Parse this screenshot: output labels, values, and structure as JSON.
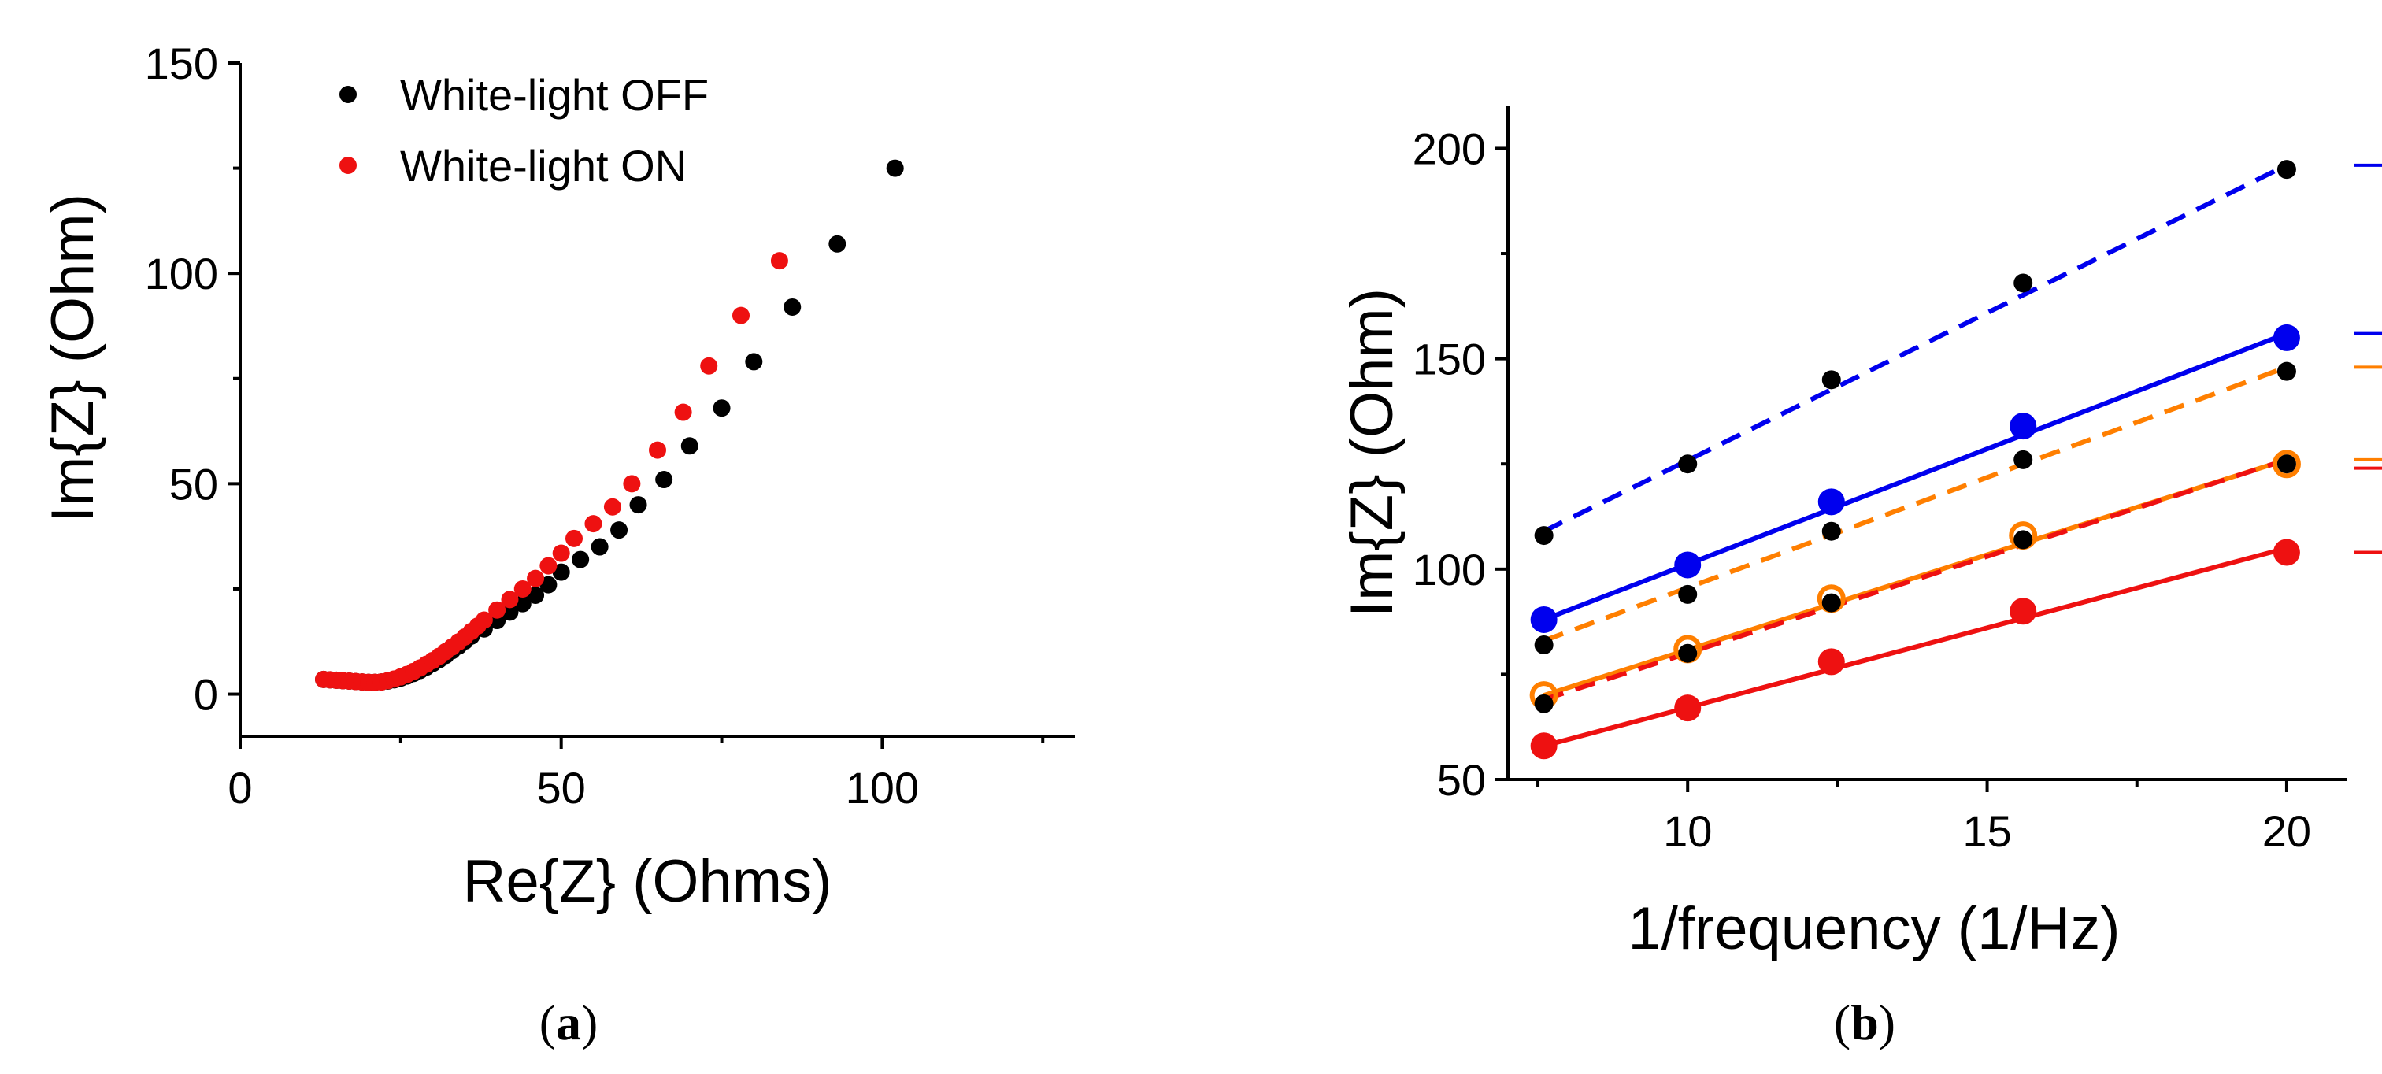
{
  "chart_data": [
    {
      "type": "scatter",
      "panel_label": {
        "open": "(",
        "letter": "a",
        "close": ")"
      },
      "xlabel": "Re{Z} (Ohms)",
      "ylabel": "Im{Z} (Ohm)",
      "xlim": [
        0,
        130
      ],
      "ylim": [
        -10,
        150
      ],
      "xticks": [
        0,
        50,
        100
      ],
      "yticks": [
        0,
        50,
        100,
        150
      ],
      "legend_position": "top-left",
      "series": [
        {
          "name": "White-light OFF",
          "color": "#000000",
          "points": [
            [
              13,
              3.5
            ],
            [
              14,
              3.4
            ],
            [
              15,
              3.3
            ],
            [
              16,
              3.2
            ],
            [
              17,
              3.1
            ],
            [
              18,
              3.0
            ],
            [
              19,
              2.9
            ],
            [
              20,
              2.8
            ],
            [
              21,
              2.8
            ],
            [
              22,
              2.9
            ],
            [
              23,
              3.1
            ],
            [
              24,
              3.4
            ],
            [
              25,
              3.8
            ],
            [
              26,
              4.3
            ],
            [
              27,
              4.9
            ],
            [
              28,
              5.6
            ],
            [
              29,
              6.4
            ],
            [
              30,
              7.3
            ],
            [
              31,
              8.2
            ],
            [
              32,
              9.2
            ],
            [
              33,
              10.3
            ],
            [
              34,
              11.4
            ],
            [
              35,
              12.6
            ],
            [
              36,
              13.8
            ],
            [
              38,
              15.5
            ],
            [
              40,
              17.5
            ],
            [
              42,
              19.5
            ],
            [
              44,
              21.5
            ],
            [
              46,
              23.5
            ],
            [
              48,
              26
            ],
            [
              50,
              29
            ],
            [
              53,
              32
            ],
            [
              56,
              35
            ],
            [
              59,
              39
            ],
            [
              62,
              45
            ],
            [
              66,
              51
            ],
            [
              70,
              59
            ],
            [
              75,
              68
            ],
            [
              80,
              79
            ],
            [
              86,
              92
            ],
            [
              93,
              107
            ],
            [
              102,
              125
            ]
          ]
        },
        {
          "name": "White-light ON",
          "color": "#ee1111",
          "points": [
            [
              13,
              3.5
            ],
            [
              14,
              3.4
            ],
            [
              15,
              3.3
            ],
            [
              16,
              3.2
            ],
            [
              17,
              3.1
            ],
            [
              18,
              3.0
            ],
            [
              19,
              2.9
            ],
            [
              20,
              2.8
            ],
            [
              21,
              2.8
            ],
            [
              22,
              2.9
            ],
            [
              23,
              3.2
            ],
            [
              24,
              3.6
            ],
            [
              25,
              4.1
            ],
            [
              26,
              4.7
            ],
            [
              27,
              5.4
            ],
            [
              28,
              6.2
            ],
            [
              29,
              7.1
            ],
            [
              30,
              8.0
            ],
            [
              31,
              9.0
            ],
            [
              32,
              10.1
            ],
            [
              33,
              11.2
            ],
            [
              34,
              12.4
            ],
            [
              35,
              13.6
            ],
            [
              36,
              14.9
            ],
            [
              37,
              16.2
            ],
            [
              38,
              17.6
            ],
            [
              40,
              20
            ],
            [
              42,
              22.5
            ],
            [
              44,
              25
            ],
            [
              46,
              27.5
            ],
            [
              48,
              30.5
            ],
            [
              50,
              33.5
            ],
            [
              52,
              37
            ],
            [
              55,
              40.5
            ],
            [
              58,
              44.5
            ],
            [
              61,
              50
            ],
            [
              65,
              58
            ],
            [
              69,
              67
            ],
            [
              73,
              78
            ],
            [
              78,
              90
            ],
            [
              84,
              103
            ]
          ]
        }
      ]
    },
    {
      "type": "scatter",
      "panel_label": {
        "open": "(",
        "letter": "b",
        "close": ")"
      },
      "xlabel": "1/frequency (1/Hz)",
      "ylabel": "Im{Z} (Ohm)",
      "xlim": [
        7,
        21
      ],
      "ylim": [
        50,
        210
      ],
      "xticks": [
        10,
        15,
        20
      ],
      "yticks": [
        50,
        100,
        150,
        200
      ],
      "x": [
        7.6,
        10,
        12.4,
        15.6,
        20
      ],
      "series": [
        {
          "name": "black upper (dark)",
          "color": "#000000",
          "marker": "small",
          "values": [
            108,
            125,
            145,
            168,
            195
          ]
        },
        {
          "name": "blue fit",
          "color": "#0000ee",
          "marker": "large",
          "values": [
            88,
            101,
            116,
            134,
            155
          ]
        },
        {
          "name": "black middle (dark)",
          "color": "#000000",
          "marker": "small",
          "values": [
            82,
            94,
            109,
            126,
            147
          ]
        },
        {
          "name": "orange fit",
          "color": "#ff7f00",
          "marker": "ring",
          "values": [
            70,
            81,
            93,
            108,
            125
          ]
        },
        {
          "name": "black lower (dark)",
          "color": "#000000",
          "marker": "small",
          "values": [
            68,
            80,
            92,
            107,
            125
          ]
        },
        {
          "name": "red fit",
          "color": "#ee1111",
          "marker": "large",
          "values": [
            58,
            67,
            78,
            90,
            104
          ]
        }
      ],
      "lines": [
        {
          "name": "blue dashed",
          "color": "#0000ee",
          "dashed": true,
          "from": [
            7.6,
            109
          ],
          "to": [
            20,
            196
          ]
        },
        {
          "name": "blue solid",
          "color": "#0000ee",
          "dashed": false,
          "from": [
            7.6,
            88
          ],
          "to": [
            20,
            156
          ]
        },
        {
          "name": "orange dashed",
          "color": "#ff7f00",
          "dashed": true,
          "from": [
            7.6,
            83
          ],
          "to": [
            20,
            148
          ]
        },
        {
          "name": "orange solid",
          "color": "#ff7f00",
          "dashed": false,
          "from": [
            7.6,
            70
          ],
          "to": [
            20,
            126
          ]
        },
        {
          "name": "red dashed",
          "color": "#ee1111",
          "dashed": true,
          "from": [
            7.6,
            69
          ],
          "to": [
            20,
            126
          ]
        },
        {
          "name": "red solid",
          "color": "#ee1111",
          "dashed": false,
          "from": [
            7.6,
            58
          ],
          "to": [
            20,
            105
          ]
        }
      ],
      "brackets": [
        {
          "name": "blue bracket",
          "color": "#0000ee",
          "y_top": 196,
          "y_bottom": 156
        },
        {
          "name": "orange bracket",
          "color": "#ff7f00",
          "y_top": 148,
          "y_bottom": 126
        },
        {
          "name": "red bracket",
          "color": "#ee1111",
          "y_top": 124,
          "y_bottom": 104
        }
      ]
    }
  ]
}
